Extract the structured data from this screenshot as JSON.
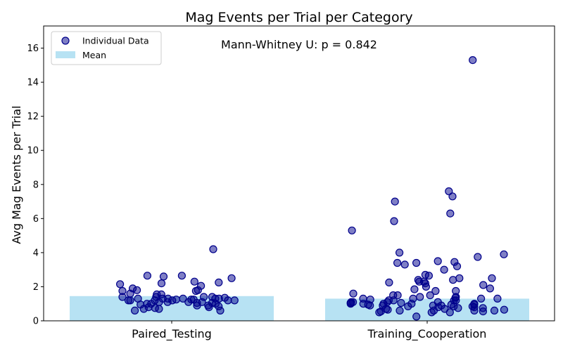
{
  "chart_data": {
    "type": "bar",
    "title": "Mag Events per Trial per Category",
    "xlabel": "",
    "ylabel": "Avg Mag Events per Trial",
    "ylim": [
      0,
      17.3
    ],
    "yticks": [
      0,
      2,
      4,
      6,
      8,
      10,
      12,
      14,
      16
    ],
    "categories": [
      "Paired_Testing",
      "Training_Cooperation"
    ],
    "series": [
      {
        "name": "Mean",
        "values": [
          1.45,
          1.3
        ],
        "color": "#87ceeb"
      }
    ],
    "points": [
      {
        "category": "Paired_Testing",
        "name": "Individual Data",
        "color": "#00008b",
        "values": [
          1.25,
          1.0,
          1.1,
          1.2,
          2.3,
          1.25,
          1.6,
          0.6,
          1.8,
          4.2,
          1.1,
          1.0,
          0.8,
          1.9,
          2.65,
          1.3,
          0.6,
          0.9,
          2.25,
          1.3,
          1.75,
          1.3,
          2.05,
          1.2,
          0.7,
          0.75,
          1.35,
          0.85,
          2.2,
          1.3,
          1.4,
          1.2,
          1.2,
          0.8,
          1.4,
          1.2,
          2.5,
          1.1,
          1.4,
          1.8,
          2.6,
          1.3,
          1.05,
          2.65,
          1.25,
          1.0,
          0.9,
          1.4,
          1.3,
          2.15,
          1.75,
          0.7,
          1.05,
          0.95,
          1.55,
          1.1,
          1.55,
          1.2
        ]
      },
      {
        "category": "Training_Cooperation",
        "name": "Individual Data",
        "color": "#00008b",
        "values": [
          0.25,
          1.6,
          1.2,
          1.25,
          2.4,
          1.05,
          5.85,
          1.5,
          1.85,
          1.0,
          0.95,
          2.3,
          0.9,
          1.3,
          0.7,
          0.75,
          1.1,
          1.75,
          2.3,
          2.65,
          7.3,
          7.0,
          2.2,
          1.3,
          0.55,
          1.5,
          1.9,
          3.0,
          5.3,
          7.6,
          6.3,
          1.0,
          0.6,
          1.4,
          1.2,
          0.85,
          3.9,
          2.0,
          0.5,
          3.5,
          1.2,
          2.1,
          0.8,
          3.2,
          1.3,
          0.6,
          1.0,
          1.1,
          1.4,
          0.8,
          1.5,
          0.55,
          0.7,
          1.0,
          1.3,
          3.4,
          1.1,
          0.6,
          2.5,
          3.75,
          15.3,
          0.65,
          0.9,
          0.75,
          3.4,
          1.0,
          2.25,
          0.5,
          0.5,
          1.2,
          0.85,
          2.7,
          0.95,
          2.5,
          1.35,
          0.9,
          1.1,
          0.9,
          3.45,
          2.4,
          4.0,
          1.75,
          3.3,
          0.85,
          0.65,
          1.05,
          0.95,
          0.6
        ]
      }
    ],
    "legend": {
      "position": "top-left",
      "entries": [
        "Individual Data",
        "Mean"
      ]
    },
    "annotation": "Mann-Whitney U: p = 0.842",
    "grid": false
  }
}
